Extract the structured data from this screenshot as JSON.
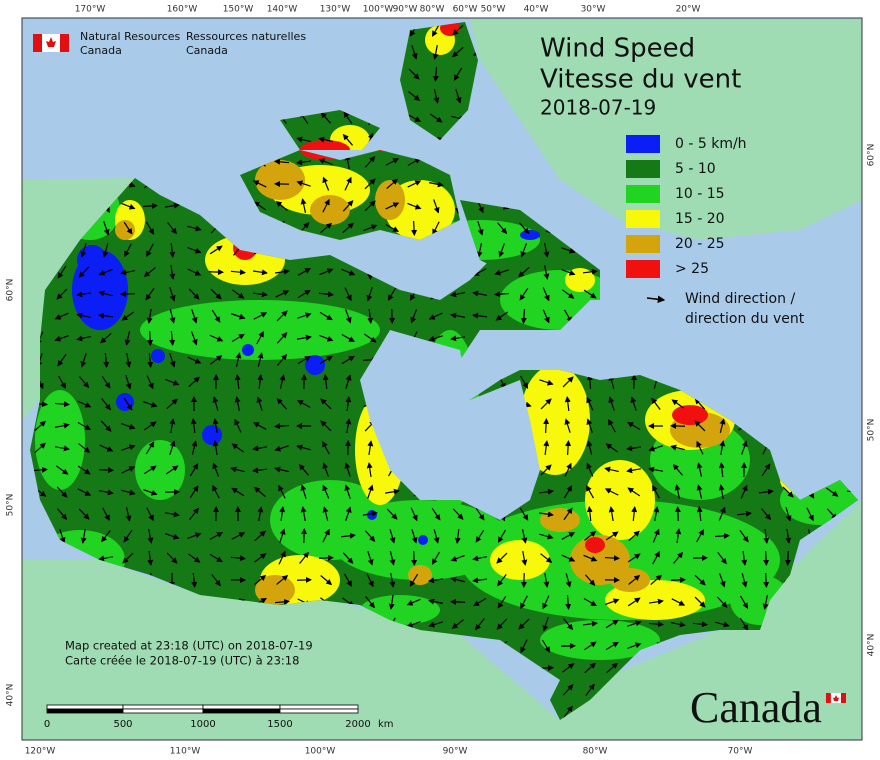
{
  "header": {
    "agency_en": "Natural Resources",
    "country_en": "Canada",
    "agency_fr": "Ressources naturelles",
    "country_fr": "Canada"
  },
  "title": {
    "en": "Wind Speed",
    "fr": "Vitesse du vent",
    "date": "2018-07-19"
  },
  "legend": {
    "classes": [
      {
        "label": "0 - 5 km/h",
        "color": "#0a1ef5"
      },
      {
        "label": "5 - 10",
        "color": "#157a15"
      },
      {
        "label": "10 - 15",
        "color": "#22d422"
      },
      {
        "label": "15 - 20",
        "color": "#f8f80a"
      },
      {
        "label": "20 - 25",
        "color": "#d4a40c"
      },
      {
        "label": "> 25",
        "color": "#f01010"
      }
    ],
    "arrow_label_en": "Wind direction /",
    "arrow_label_fr": "direction du vent"
  },
  "credits": {
    "en": "Map created at 23:18 (UTC) on 2018-07-19",
    "fr": "Carte créée le 2018-07-19 (UTC) à 23:18"
  },
  "scale_bar": {
    "ticks": [
      0,
      500,
      1000,
      1500,
      2000
    ],
    "unit": "km"
  },
  "graticule": {
    "top": [
      "170°W",
      "160°W",
      "150°W",
      "140°W",
      "130°W",
      "100°W",
      "90°W",
      "80°W",
      "60°W",
      "50°W",
      "40°W",
      "30°W",
      "20°W"
    ],
    "bottom": [
      "120°W",
      "110°W",
      "100°W",
      "90°W",
      "80°W",
      "70°W"
    ],
    "left": [
      "60°N",
      "50°N",
      "40°N"
    ],
    "right": [
      "60°N",
      "50°N",
      "40°N"
    ]
  },
  "wordmark": "Canada"
}
